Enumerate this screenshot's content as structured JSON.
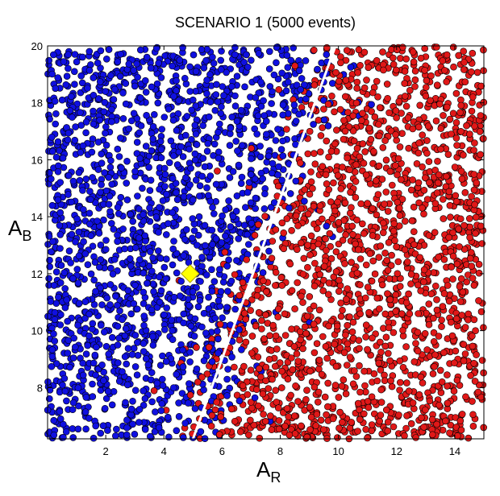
{
  "chart_data": {
    "type": "scatter",
    "title": "SCENARIO 1 (5000 events)",
    "xlabel": {
      "main": "A",
      "sub": "R"
    },
    "ylabel": {
      "main": "A",
      "sub": "B"
    },
    "xlim": [
      0,
      15
    ],
    "ylim": [
      6.2,
      20
    ],
    "xticks": [
      2,
      4,
      6,
      8,
      10,
      12,
      14
    ],
    "yticks": [
      8,
      10,
      12,
      14,
      16,
      18,
      20
    ],
    "grid": false,
    "n_events": 5000,
    "series": [
      {
        "color": "#1010e0",
        "region": "left of boundary"
      },
      {
        "color": "#e01818",
        "region": "right of boundary"
      }
    ],
    "boundary_line": {
      "color": "#ffffff",
      "points": [
        [
          5.0,
          6.2
        ],
        [
          9.9,
          20.0
        ]
      ]
    },
    "highlight_point": {
      "x": 4.9,
      "y": 12.0,
      "color": "#ffff00",
      "shape": "diamond"
    }
  }
}
